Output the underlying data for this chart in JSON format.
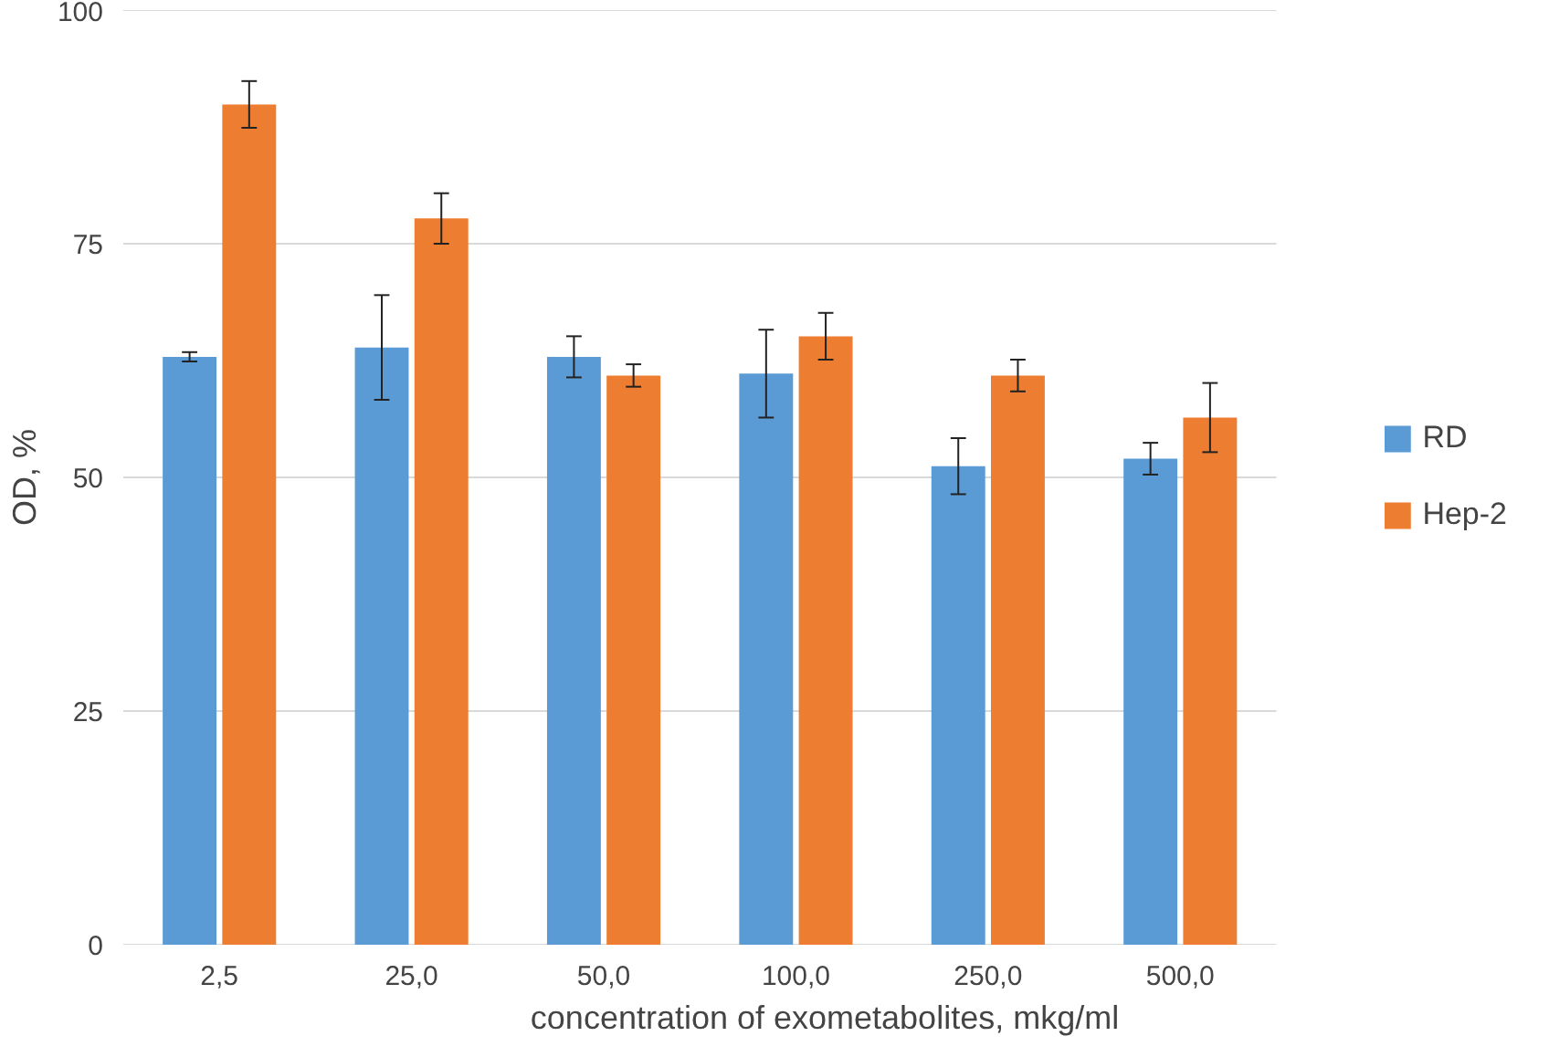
{
  "chart_data": {
    "type": "bar",
    "xlabel": "concentration of exometabolites, mkg/ml",
    "ylabel": "OD, %",
    "categories": [
      "2,5",
      "25,0",
      "50,0",
      "100,0",
      "250,0",
      "500,0"
    ],
    "series": [
      {
        "name": "RD",
        "color": "#5b9bd5",
        "values": [
          62.9,
          63.9,
          62.9,
          61.1,
          51.2,
          52.0
        ],
        "errors": [
          0.5,
          5.6,
          2.2,
          4.7,
          3.0,
          1.7
        ]
      },
      {
        "name": "Hep-2",
        "color": "#ed7d31",
        "values": [
          89.9,
          77.7,
          60.9,
          65.1,
          60.9,
          56.4
        ],
        "errors": [
          2.5,
          2.7,
          1.2,
          2.5,
          1.7,
          3.7
        ]
      }
    ],
    "ylim": [
      0,
      100
    ],
    "yticks": [
      0,
      25,
      50,
      75,
      100
    ],
    "grid": "y",
    "legend": "right"
  }
}
